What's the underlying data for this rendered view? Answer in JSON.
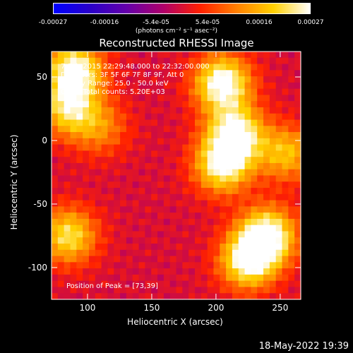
{
  "colorbar": {
    "ticks": [
      "-0.00027",
      "-0.00016",
      "-5.4e-05",
      "5.4e-05",
      "0.00016",
      "0.00027"
    ],
    "label": "(photons cm⁻² s⁻¹ asec⁻²)",
    "colors": [
      "#0000ff",
      "#2a00c8",
      "#6600aa",
      "#b0006a",
      "#ff2000",
      "#ff8000",
      "#ffd000",
      "#ffffff"
    ]
  },
  "footer": {
    "timestamp": "18-May-2022 19:39"
  },
  "chart_data": {
    "type": "heatmap",
    "title": "Reconstructed RHESSI Image",
    "xlabel": "Heliocentric X (arcsec)",
    "ylabel": "Heliocentric Y (arcsec)",
    "xlim": [
      72,
      266
    ],
    "ylim": [
      -125,
      70
    ],
    "xticks": [
      100,
      150,
      200,
      250
    ],
    "yticks": [
      50,
      0,
      -50,
      -100
    ],
    "annotations": {
      "time_range": "7-Feb-2015 22:29:48.000 to 22:32:00.000",
      "detectors": "Detectors: 3F 5F 6F 7F 8F 9F, Att 0",
      "energy_range": "Energy Range: 25.0 - 50.0 keV",
      "method": "Clean    Total counts: 5.20E+03",
      "peak": "Position of Peak = [73,39]"
    },
    "sources": [
      {
        "x": 90,
        "y": 55,
        "level": 0.95
      },
      {
        "x": 85,
        "y": 25,
        "level": 0.7
      },
      {
        "x": 205,
        "y": 45,
        "level": 1.0
      },
      {
        "x": 215,
        "y": 5,
        "level": 0.95
      },
      {
        "x": 205,
        "y": -20,
        "level": 0.85
      },
      {
        "x": 240,
        "y": -75,
        "level": 1.0
      },
      {
        "x": 225,
        "y": -95,
        "level": 0.9
      },
      {
        "x": 85,
        "y": -75,
        "level": 0.75
      },
      {
        "x": 255,
        "y": -10,
        "level": 0.6
      },
      {
        "x": 110,
        "y": 10,
        "level": 0.4
      }
    ]
  }
}
